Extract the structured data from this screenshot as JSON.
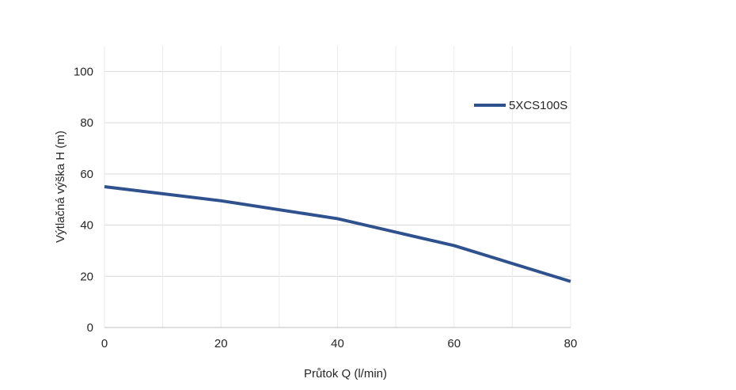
{
  "chart_data": {
    "type": "line",
    "title": "",
    "xlabel": "Průtok Q (l/min)",
    "ylabel": "Výtlačná výška H (m)",
    "xlim": [
      0,
      80
    ],
    "ylim": [
      0,
      110
    ],
    "x_ticks": [
      0,
      20,
      40,
      60,
      80
    ],
    "y_ticks": [
      0,
      20,
      40,
      60,
      80,
      100
    ],
    "x_tick_labels": [
      "0",
      "20",
      "40",
      "60",
      "80"
    ],
    "y_tick_labels": [
      "0",
      "20",
      "40",
      "60",
      "80",
      "100"
    ],
    "x_minor_grid": [
      10,
      30,
      50,
      70
    ],
    "grid": true,
    "legend_position": "right",
    "series": [
      {
        "name": "5XCS100S",
        "color": "#2f528f",
        "x": [
          0,
          20,
          40,
          60,
          80
        ],
        "y": [
          55,
          49.5,
          42.5,
          32,
          18
        ]
      }
    ]
  }
}
